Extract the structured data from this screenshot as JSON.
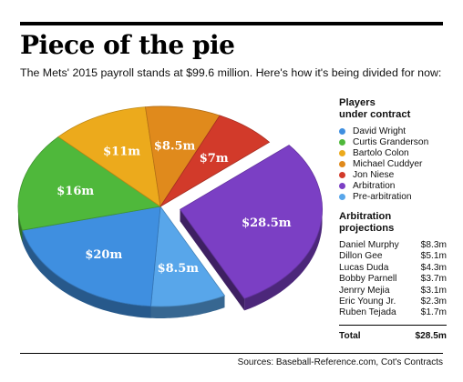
{
  "title": "Piece of the pie",
  "subtitle": "The Mets' 2015 payroll stands at $99.6 million. Here's how it's being divided for now:",
  "legend": {
    "title_line1": "Players",
    "title_line2": "under contract"
  },
  "arbitration_table": {
    "title_line1": "Arbitration",
    "title_line2": "projections",
    "rows": [
      {
        "name": "Daniel Murphy",
        "value": "$8.3m"
      },
      {
        "name": "Dillon Gee",
        "value": "$5.1m"
      },
      {
        "name": "Lucas Duda",
        "value": "$4.3m"
      },
      {
        "name": "Bobby Parnell",
        "value": "$3.7m"
      },
      {
        "name": "Jenrry Mejia",
        "value": "$3.1m"
      },
      {
        "name": "Eric Young Jr.",
        "value": "$2.3m"
      },
      {
        "name": "Ruben Tejada",
        "value": "$1.7m"
      }
    ],
    "total_label": "Total",
    "total_value": "$28.5m"
  },
  "sources": "Sources: Baseball-Reference.com, Cot's Contracts",
  "chart_data": {
    "type": "pie",
    "unit": "$ millions",
    "slices": [
      {
        "name": "Arbitration",
        "value": 28.5,
        "label": "$28.5m",
        "color": "#7b3fc4",
        "exploded": true
      },
      {
        "name": "Pre-arbitration",
        "value": 8.5,
        "label": "$8.5m",
        "color": "#58a6ea"
      },
      {
        "name": "David Wright",
        "value": 20,
        "label": "$20m",
        "color": "#3f8fe0"
      },
      {
        "name": "Curtis Granderson",
        "value": 16,
        "label": "$16m",
        "color": "#4fb83b"
      },
      {
        "name": "Bartolo Colon",
        "value": 11,
        "label": "$11m",
        "color": "#ecaa1c"
      },
      {
        "name": "Michael Cuddyer",
        "value": 8.5,
        "label": "$8.5m",
        "color": "#e08a1c"
      },
      {
        "name": "Jon Niese",
        "value": 7,
        "label": "$7m",
        "color": "#d23a2a"
      }
    ],
    "legend_order": [
      "David Wright",
      "Curtis Granderson",
      "Bartolo Colon",
      "Michael Cuddyer",
      "Jon Niese",
      "Arbitration",
      "Pre-arbitration"
    ]
  }
}
